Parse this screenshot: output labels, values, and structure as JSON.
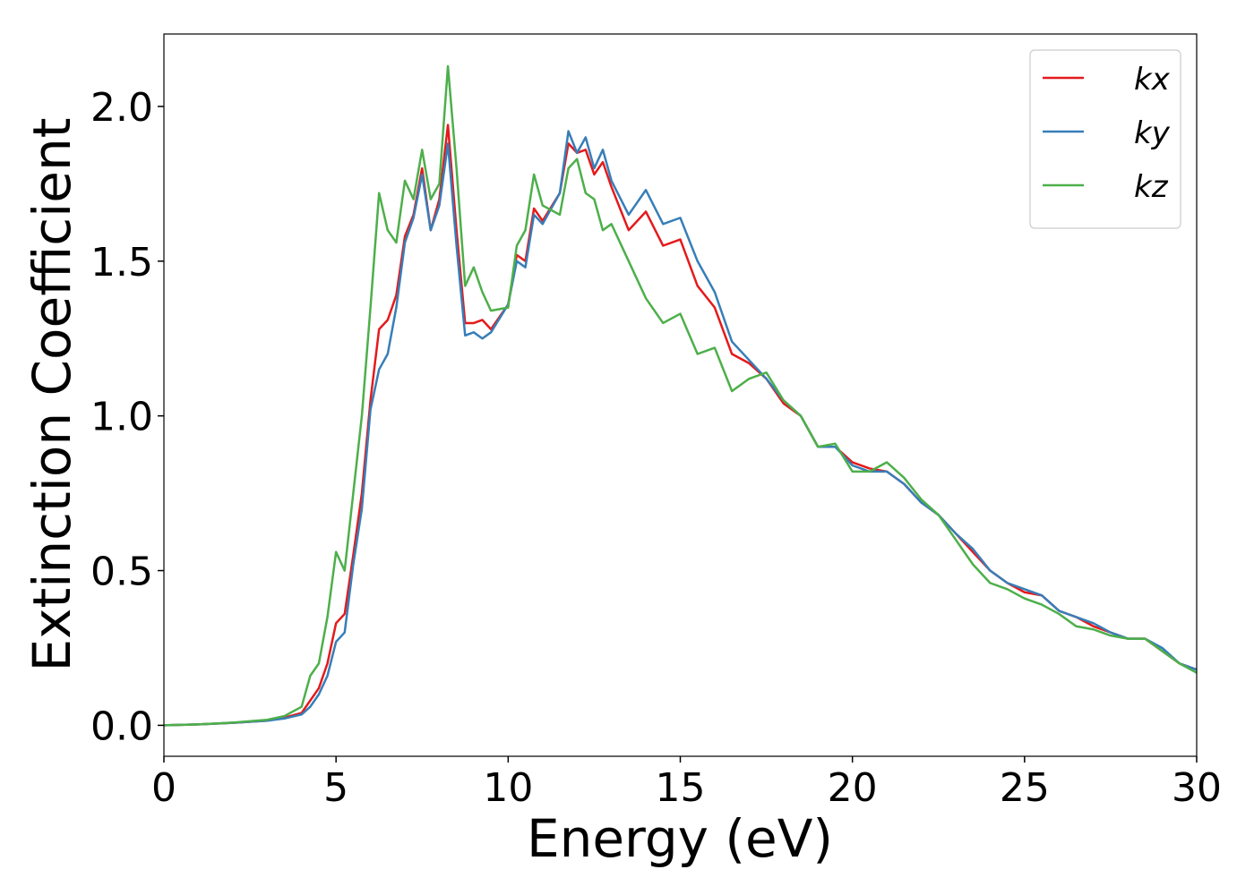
{
  "chart_data": {
    "type": "line",
    "xlabel": "Energy (eV)",
    "ylabel": "Extinction Coefficient",
    "x": [
      0,
      1,
      2,
      3,
      3.5,
      4,
      4.25,
      4.5,
      4.75,
      5,
      5.25,
      5.5,
      5.75,
      6,
      6.25,
      6.5,
      6.75,
      7,
      7.25,
      7.5,
      7.75,
      8,
      8.25,
      8.5,
      8.75,
      9,
      9.25,
      9.5,
      10,
      10.25,
      10.5,
      10.75,
      11,
      11.5,
      11.75,
      12,
      12.25,
      12.5,
      12.75,
      13,
      13.5,
      14,
      14.5,
      15,
      15.5,
      16,
      16.5,
      17,
      17.5,
      18,
      18.5,
      19,
      19.5,
      20,
      20.5,
      21,
      21.5,
      22,
      22.5,
      23,
      23.5,
      24,
      24.5,
      25,
      25.5,
      26,
      26.5,
      27,
      27.5,
      28,
      28.5,
      29,
      29.5,
      30
    ],
    "series": [
      {
        "name": "kx",
        "color": "#e41a1c",
        "values": [
          0,
          0.003,
          0.008,
          0.015,
          0.025,
          0.04,
          0.08,
          0.12,
          0.2,
          0.33,
          0.36,
          0.55,
          0.75,
          1.05,
          1.28,
          1.31,
          1.39,
          1.58,
          1.65,
          1.8,
          1.6,
          1.7,
          1.94,
          1.6,
          1.3,
          1.3,
          1.31,
          1.28,
          1.36,
          1.52,
          1.5,
          1.67,
          1.63,
          1.72,
          1.88,
          1.85,
          1.86,
          1.78,
          1.82,
          1.74,
          1.6,
          1.66,
          1.55,
          1.57,
          1.42,
          1.35,
          1.2,
          1.17,
          1.12,
          1.04,
          1.0,
          0.9,
          0.9,
          0.85,
          0.83,
          0.82,
          0.78,
          0.72,
          0.68,
          0.62,
          0.56,
          0.5,
          0.46,
          0.43,
          0.42,
          0.37,
          0.35,
          0.32,
          0.3,
          0.28,
          0.28,
          0.24,
          0.2,
          0.18
        ]
      },
      {
        "name": "ky",
        "color": "#377eb8",
        "values": [
          0,
          0.003,
          0.008,
          0.015,
          0.022,
          0.035,
          0.06,
          0.1,
          0.16,
          0.27,
          0.3,
          0.52,
          0.7,
          1.02,
          1.15,
          1.2,
          1.35,
          1.56,
          1.64,
          1.78,
          1.6,
          1.68,
          1.88,
          1.55,
          1.26,
          1.27,
          1.25,
          1.27,
          1.36,
          1.5,
          1.48,
          1.65,
          1.62,
          1.72,
          1.92,
          1.85,
          1.9,
          1.8,
          1.86,
          1.76,
          1.65,
          1.73,
          1.62,
          1.64,
          1.5,
          1.4,
          1.24,
          1.18,
          1.12,
          1.05,
          1.0,
          0.9,
          0.9,
          0.84,
          0.82,
          0.82,
          0.78,
          0.72,
          0.68,
          0.62,
          0.57,
          0.5,
          0.46,
          0.44,
          0.42,
          0.37,
          0.35,
          0.33,
          0.3,
          0.28,
          0.28,
          0.25,
          0.2,
          0.18
        ]
      },
      {
        "name": "kz",
        "color": "#4daf4a",
        "values": [
          0,
          0.003,
          0.009,
          0.018,
          0.03,
          0.06,
          0.16,
          0.2,
          0.35,
          0.56,
          0.5,
          0.75,
          1.0,
          1.35,
          1.72,
          1.6,
          1.56,
          1.76,
          1.7,
          1.86,
          1.7,
          1.75,
          2.13,
          1.8,
          1.42,
          1.48,
          1.4,
          1.34,
          1.35,
          1.55,
          1.6,
          1.78,
          1.68,
          1.65,
          1.8,
          1.83,
          1.72,
          1.7,
          1.6,
          1.62,
          1.5,
          1.38,
          1.3,
          1.33,
          1.2,
          1.22,
          1.08,
          1.12,
          1.14,
          1.05,
          1.0,
          0.9,
          0.91,
          0.82,
          0.82,
          0.85,
          0.8,
          0.73,
          0.68,
          0.6,
          0.52,
          0.46,
          0.44,
          0.41,
          0.39,
          0.36,
          0.32,
          0.31,
          0.29,
          0.28,
          0.28,
          0.24,
          0.2,
          0.17
        ]
      }
    ],
    "xlim": [
      0,
      30
    ],
    "xticks": [
      0,
      5,
      10,
      15,
      20,
      25,
      30
    ],
    "ylim": [
      -0.1,
      2.234
    ],
    "yticks": [
      {
        "value": 0,
        "label": "0.0"
      },
      {
        "value": 0.5,
        "label": "0.5"
      },
      {
        "value": 1,
        "label": "1.0"
      },
      {
        "value": 1.5,
        "label": "1.5"
      },
      {
        "value": 2,
        "label": "2.0"
      }
    ],
    "legend": "upper right"
  }
}
